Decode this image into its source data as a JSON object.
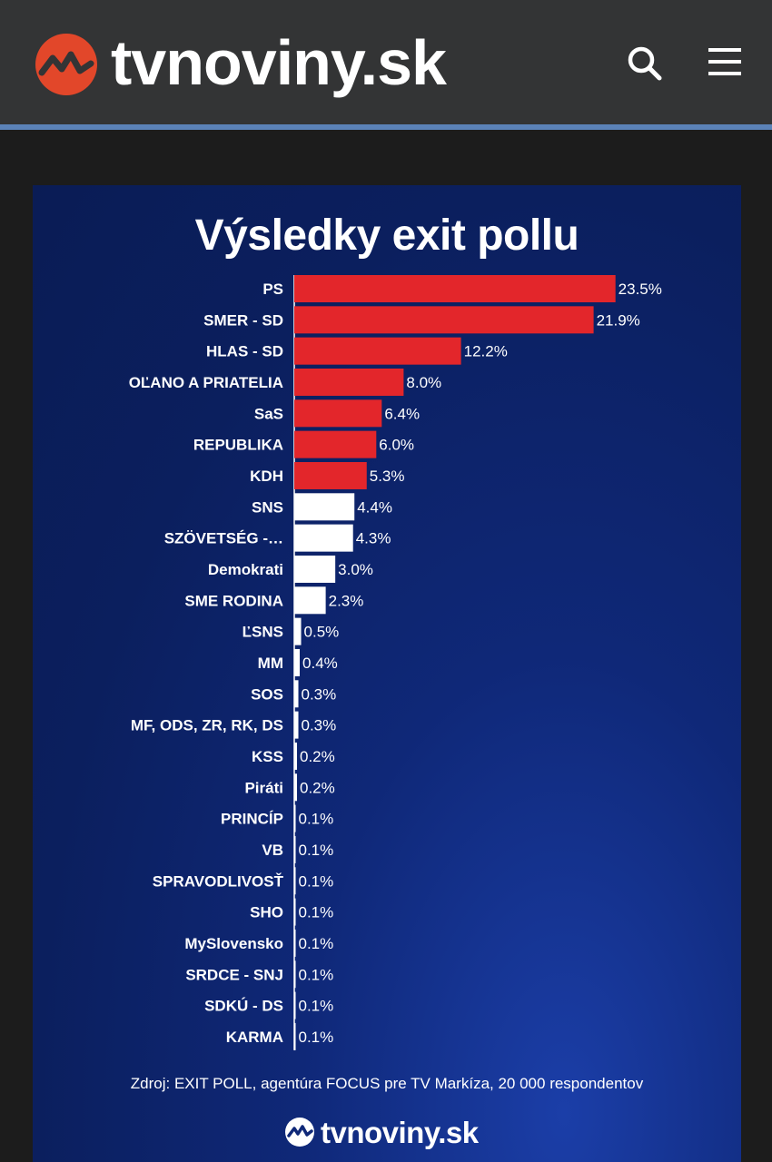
{
  "header": {
    "site_name": "tvnoviny.sk",
    "brand_color": "#e2472a",
    "search_icon": "search-icon",
    "menu_icon": "hamburger-menu-icon"
  },
  "chart_data": {
    "type": "bar",
    "orientation": "horizontal",
    "title": "Výsledky exit pollu",
    "categories": [
      "PS",
      "SMER - SD",
      "HLAS - SD",
      "OĽANO A PRIATELIA",
      "SaS",
      "REPUBLIKA",
      "KDH",
      "SNS",
      "SZÖVETSÉG -…",
      "Demokrati",
      "SME RODINA",
      "ĽSNS",
      "MM",
      "SOS",
      "MF, ODS, ZR, RK, DS",
      "KSS",
      "Piráti",
      "PRINCÍP",
      "VB",
      "SPRAVODLIVOSŤ",
      "SHO",
      "MySlovensko",
      "SRDCE - SNJ",
      "SDKÚ - DS",
      "KARMA"
    ],
    "values": [
      23.5,
      21.9,
      12.2,
      8.0,
      6.4,
      6.0,
      5.3,
      4.4,
      4.3,
      3.0,
      2.3,
      0.5,
      0.4,
      0.3,
      0.3,
      0.2,
      0.2,
      0.1,
      0.1,
      0.1,
      0.1,
      0.1,
      0.1,
      0.1,
      0.1
    ],
    "value_labels": [
      "23.5%",
      "21.9%",
      "12.2%",
      "8.0%",
      "6.4%",
      "6.0%",
      "5.3%",
      "4.4%",
      "4.3%",
      "3.0%",
      "2.3%",
      "0.5%",
      "0.4%",
      "0.3%",
      "0.3%",
      "0.2%",
      "0.2%",
      "0.1%",
      "0.1%",
      "0.1%",
      "0.1%",
      "0.1%",
      "0.1%",
      "0.1%",
      "0.1%"
    ],
    "threshold_index": 7,
    "colors": {
      "above_threshold": "#e3262b",
      "below_threshold": "#ffffff",
      "background": "#0b1f5e",
      "text": "#ffffff"
    },
    "grid": false,
    "legend": "none"
  },
  "source": "Zdroj: EXIT POLL, agentúra FOCUS pre TV Markíza, 20 000 respondentov",
  "footer": {
    "logo_text": "tvnoviny.sk"
  }
}
